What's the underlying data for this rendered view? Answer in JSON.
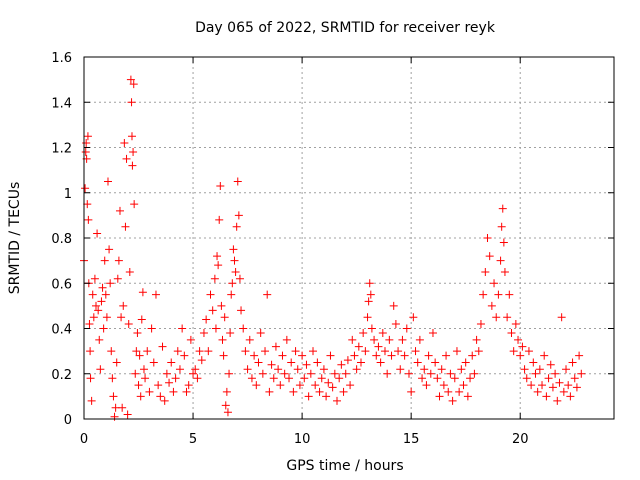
{
  "chart_data": {
    "type": "scatter",
    "title": "Day 065 of 2022, SRMTID for receiver reyk",
    "xlabel": "GPS time / hours",
    "ylabel": "SRMTID / TECUs",
    "xlim": [
      0,
      24.3
    ],
    "ylim": [
      0,
      1.6
    ],
    "x_ticks": [
      0,
      5,
      10,
      15,
      20
    ],
    "x_tick_labels": [
      "0",
      "5",
      "10",
      "15",
      "20"
    ],
    "y_ticks": [
      0,
      0.2,
      0.4,
      0.6,
      0.8,
      1,
      1.2,
      1.4,
      1.6
    ],
    "y_tick_labels": [
      "0",
      "0.2",
      "0.4",
      "0.6",
      "0.8",
      "1",
      "1.2",
      "1.4",
      "1.6"
    ],
    "grid": true,
    "marker": "+",
    "color": "#ff0000",
    "series": [
      {
        "name": "SRMTID",
        "points": [
          [
            0.0,
            0.7
          ],
          [
            0.05,
            1.02
          ],
          [
            0.08,
            1.18
          ],
          [
            0.1,
            1.22
          ],
          [
            0.12,
            1.15
          ],
          [
            0.15,
            0.95
          ],
          [
            0.18,
            1.25
          ],
          [
            0.2,
            0.88
          ],
          [
            0.22,
            0.6
          ],
          [
            0.25,
            0.42
          ],
          [
            0.28,
            0.3
          ],
          [
            0.3,
            0.18
          ],
          [
            0.35,
            0.08
          ],
          [
            0.4,
            0.55
          ],
          [
            0.45,
            0.45
          ],
          [
            0.5,
            0.62
          ],
          [
            0.55,
            0.5
          ],
          [
            0.6,
            0.82
          ],
          [
            0.65,
            0.48
          ],
          [
            0.7,
            0.35
          ],
          [
            0.75,
            0.22
          ],
          [
            0.8,
            0.52
          ],
          [
            0.85,
            0.58
          ],
          [
            0.9,
            0.4
          ],
          [
            0.95,
            0.7
          ],
          [
            1.0,
            0.55
          ],
          [
            1.05,
            0.45
          ],
          [
            1.1,
            1.05
          ],
          [
            1.15,
            0.75
          ],
          [
            1.2,
            0.6
          ],
          [
            1.25,
            0.3
          ],
          [
            1.3,
            0.18
          ],
          [
            1.35,
            0.1
          ],
          [
            1.4,
            0.01
          ],
          [
            1.45,
            0.05
          ],
          [
            1.5,
            0.25
          ],
          [
            1.55,
            0.62
          ],
          [
            1.6,
            0.7
          ],
          [
            1.65,
            0.92
          ],
          [
            1.7,
            0.45
          ],
          [
            1.75,
            0.05
          ],
          [
            1.8,
            0.5
          ],
          [
            1.85,
            1.22
          ],
          [
            1.9,
            0.85
          ],
          [
            1.95,
            1.15
          ],
          [
            2.0,
            0.02
          ],
          [
            2.05,
            0.42
          ],
          [
            2.1,
            0.65
          ],
          [
            2.15,
            1.5
          ],
          [
            2.18,
            1.4
          ],
          [
            2.2,
            1.25
          ],
          [
            2.22,
            1.12
          ],
          [
            2.25,
            1.18
          ],
          [
            2.28,
            1.48
          ],
          [
            2.3,
            0.95
          ],
          [
            2.35,
            0.2
          ],
          [
            2.4,
            0.3
          ],
          [
            2.45,
            0.38
          ],
          [
            2.5,
            0.15
          ],
          [
            2.55,
            0.28
          ],
          [
            2.6,
            0.1
          ],
          [
            2.65,
            0.44
          ],
          [
            2.7,
            0.56
          ],
          [
            2.75,
            0.22
          ],
          [
            2.8,
            0.18
          ],
          [
            2.9,
            0.3
          ],
          [
            3.0,
            0.12
          ],
          [
            3.1,
            0.4
          ],
          [
            3.2,
            0.25
          ],
          [
            3.3,
            0.55
          ],
          [
            3.4,
            0.15
          ],
          [
            3.5,
            0.1
          ],
          [
            3.6,
            0.32
          ],
          [
            3.7,
            0.08
          ],
          [
            3.8,
            0.2
          ],
          [
            3.9,
            0.16
          ],
          [
            4.0,
            0.25
          ],
          [
            4.1,
            0.12
          ],
          [
            4.2,
            0.18
          ],
          [
            4.3,
            0.3
          ],
          [
            4.4,
            0.22
          ],
          [
            4.5,
            0.4
          ],
          [
            4.6,
            0.28
          ],
          [
            4.7,
            0.12
          ],
          [
            4.8,
            0.15
          ],
          [
            4.9,
            0.35
          ],
          [
            5.0,
            0.2
          ],
          [
            5.1,
            0.22
          ],
          [
            5.2,
            0.18
          ],
          [
            5.3,
            0.3
          ],
          [
            5.4,
            0.26
          ],
          [
            5.5,
            0.38
          ],
          [
            5.6,
            0.44
          ],
          [
            5.7,
            0.3
          ],
          [
            5.8,
            0.55
          ],
          [
            5.9,
            0.48
          ],
          [
            6.0,
            0.62
          ],
          [
            6.05,
            0.4
          ],
          [
            6.1,
            0.72
          ],
          [
            6.15,
            0.68
          ],
          [
            6.2,
            0.88
          ],
          [
            6.25,
            1.03
          ],
          [
            6.3,
            0.5
          ],
          [
            6.35,
            0.35
          ],
          [
            6.4,
            0.28
          ],
          [
            6.45,
            0.45
          ],
          [
            6.5,
            0.06
          ],
          [
            6.55,
            0.12
          ],
          [
            6.6,
            0.03
          ],
          [
            6.65,
            0.2
          ],
          [
            6.7,
            0.38
          ],
          [
            6.75,
            0.55
          ],
          [
            6.8,
            0.6
          ],
          [
            6.85,
            0.75
          ],
          [
            6.9,
            0.7
          ],
          [
            6.95,
            0.65
          ],
          [
            7.0,
            0.85
          ],
          [
            7.05,
            1.05
          ],
          [
            7.1,
            0.9
          ],
          [
            7.15,
            0.62
          ],
          [
            7.2,
            0.48
          ],
          [
            7.3,
            0.4
          ],
          [
            7.4,
            0.3
          ],
          [
            7.5,
            0.22
          ],
          [
            7.6,
            0.35
          ],
          [
            7.7,
            0.18
          ],
          [
            7.8,
            0.28
          ],
          [
            7.9,
            0.15
          ],
          [
            8.0,
            0.25
          ],
          [
            8.1,
            0.38
          ],
          [
            8.2,
            0.2
          ],
          [
            8.3,
            0.3
          ],
          [
            8.4,
            0.55
          ],
          [
            8.5,
            0.12
          ],
          [
            8.6,
            0.24
          ],
          [
            8.7,
            0.18
          ],
          [
            8.8,
            0.32
          ],
          [
            8.9,
            0.22
          ],
          [
            9.0,
            0.15
          ],
          [
            9.1,
            0.28
          ],
          [
            9.2,
            0.2
          ],
          [
            9.3,
            0.35
          ],
          [
            9.4,
            0.18
          ],
          [
            9.5,
            0.25
          ],
          [
            9.6,
            0.12
          ],
          [
            9.7,
            0.3
          ],
          [
            9.8,
            0.22
          ],
          [
            9.9,
            0.15
          ],
          [
            10.0,
            0.28
          ],
          [
            10.1,
            0.18
          ],
          [
            10.2,
            0.24
          ],
          [
            10.3,
            0.1
          ],
          [
            10.4,
            0.2
          ],
          [
            10.5,
            0.3
          ],
          [
            10.6,
            0.15
          ],
          [
            10.7,
            0.25
          ],
          [
            10.8,
            0.12
          ],
          [
            10.9,
            0.18
          ],
          [
            11.0,
            0.22
          ],
          [
            11.1,
            0.1
          ],
          [
            11.2,
            0.16
          ],
          [
            11.3,
            0.28
          ],
          [
            11.4,
            0.14
          ],
          [
            11.5,
            0.2
          ],
          [
            11.6,
            0.08
          ],
          [
            11.7,
            0.18
          ],
          [
            11.8,
            0.24
          ],
          [
            11.9,
            0.12
          ],
          [
            12.0,
            0.2
          ],
          [
            12.1,
            0.26
          ],
          [
            12.2,
            0.15
          ],
          [
            12.3,
            0.35
          ],
          [
            12.4,
            0.28
          ],
          [
            12.5,
            0.22
          ],
          [
            12.6,
            0.32
          ],
          [
            12.7,
            0.25
          ],
          [
            12.8,
            0.38
          ],
          [
            12.9,
            0.3
          ],
          [
            13.0,
            0.45
          ],
          [
            13.05,
            0.52
          ],
          [
            13.1,
            0.6
          ],
          [
            13.15,
            0.55
          ],
          [
            13.2,
            0.4
          ],
          [
            13.3,
            0.35
          ],
          [
            13.4,
            0.28
          ],
          [
            13.5,
            0.32
          ],
          [
            13.6,
            0.25
          ],
          [
            13.7,
            0.38
          ],
          [
            13.8,
            0.3
          ],
          [
            13.9,
            0.2
          ],
          [
            14.0,
            0.35
          ],
          [
            14.1,
            0.28
          ],
          [
            14.2,
            0.5
          ],
          [
            14.3,
            0.42
          ],
          [
            14.4,
            0.3
          ],
          [
            14.5,
            0.22
          ],
          [
            14.6,
            0.35
          ],
          [
            14.7,
            0.28
          ],
          [
            14.8,
            0.4
          ],
          [
            14.9,
            0.2
          ],
          [
            15.0,
            0.12
          ],
          [
            15.1,
            0.45
          ],
          [
            15.2,
            0.3
          ],
          [
            15.3,
            0.25
          ],
          [
            15.4,
            0.35
          ],
          [
            15.5,
            0.18
          ],
          [
            15.6,
            0.22
          ],
          [
            15.7,
            0.15
          ],
          [
            15.8,
            0.28
          ],
          [
            15.9,
            0.2
          ],
          [
            16.0,
            0.38
          ],
          [
            16.1,
            0.25
          ],
          [
            16.2,
            0.18
          ],
          [
            16.3,
            0.1
          ],
          [
            16.4,
            0.22
          ],
          [
            16.5,
            0.15
          ],
          [
            16.6,
            0.28
          ],
          [
            16.7,
            0.12
          ],
          [
            16.8,
            0.2
          ],
          [
            16.9,
            0.08
          ],
          [
            17.0,
            0.18
          ],
          [
            17.1,
            0.3
          ],
          [
            17.2,
            0.12
          ],
          [
            17.3,
            0.22
          ],
          [
            17.4,
            0.15
          ],
          [
            17.5,
            0.25
          ],
          [
            17.6,
            0.1
          ],
          [
            17.7,
            0.18
          ],
          [
            17.8,
            0.28
          ],
          [
            17.9,
            0.2
          ],
          [
            18.0,
            0.35
          ],
          [
            18.1,
            0.3
          ],
          [
            18.2,
            0.42
          ],
          [
            18.3,
            0.55
          ],
          [
            18.4,
            0.65
          ],
          [
            18.5,
            0.8
          ],
          [
            18.6,
            0.72
          ],
          [
            18.7,
            0.5
          ],
          [
            18.8,
            0.6
          ],
          [
            18.9,
            0.45
          ],
          [
            19.0,
            0.55
          ],
          [
            19.1,
            0.7
          ],
          [
            19.15,
            0.85
          ],
          [
            19.2,
            0.93
          ],
          [
            19.25,
            0.78
          ],
          [
            19.3,
            0.65
          ],
          [
            19.4,
            0.45
          ],
          [
            19.5,
            0.55
          ],
          [
            19.6,
            0.38
          ],
          [
            19.7,
            0.3
          ],
          [
            19.8,
            0.42
          ],
          [
            19.9,
            0.35
          ],
          [
            20.0,
            0.28
          ],
          [
            20.1,
            0.32
          ],
          [
            20.2,
            0.22
          ],
          [
            20.3,
            0.18
          ],
          [
            20.4,
            0.3
          ],
          [
            20.5,
            0.15
          ],
          [
            20.6,
            0.25
          ],
          [
            20.7,
            0.2
          ],
          [
            20.8,
            0.12
          ],
          [
            20.9,
            0.22
          ],
          [
            21.0,
            0.15
          ],
          [
            21.1,
            0.28
          ],
          [
            21.2,
            0.1
          ],
          [
            21.3,
            0.18
          ],
          [
            21.4,
            0.24
          ],
          [
            21.5,
            0.14
          ],
          [
            21.6,
            0.2
          ],
          [
            21.7,
            0.08
          ],
          [
            21.8,
            0.16
          ],
          [
            21.9,
            0.45
          ],
          [
            22.0,
            0.12
          ],
          [
            22.1,
            0.22
          ],
          [
            22.2,
            0.15
          ],
          [
            22.3,
            0.1
          ],
          [
            22.4,
            0.25
          ],
          [
            22.5,
            0.18
          ],
          [
            22.6,
            0.14
          ],
          [
            22.7,
            0.28
          ],
          [
            22.8,
            0.2
          ]
        ]
      }
    ]
  }
}
